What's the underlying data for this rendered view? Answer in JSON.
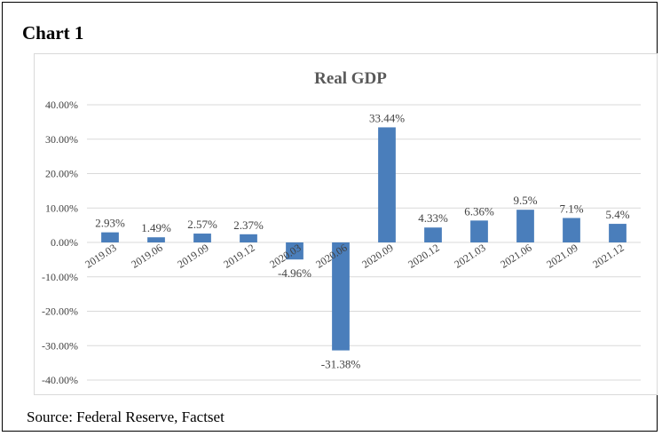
{
  "header": {
    "title": "Chart 1"
  },
  "footer": {
    "source": "Source: Federal Reserve, Factset"
  },
  "chart_data": {
    "type": "bar",
    "title": "Real GDP",
    "categories": [
      "2019.03",
      "2019.06",
      "2019.09",
      "2019.12",
      "2020.03",
      "2020.06",
      "2020.09",
      "2020.12",
      "2021.03",
      "2021.06",
      "2021.09",
      "2021.12"
    ],
    "values": [
      2.93,
      1.49,
      2.57,
      2.37,
      -4.96,
      -31.38,
      33.44,
      4.33,
      6.36,
      9.5,
      7.1,
      5.4
    ],
    "data_labels": [
      "2.93%",
      "1.49%",
      "2.57%",
      "2.37%",
      "-4.96%",
      "-31.38%",
      "33.44%",
      "4.33%",
      "6.36%",
      "9.5%",
      "7.1%",
      "5.4%"
    ],
    "y_ticks": [
      40,
      30,
      20,
      10,
      0,
      -10,
      -20,
      -30,
      -40
    ],
    "y_tick_labels": [
      "40.00%",
      "30.00%",
      "20.00%",
      "10.00%",
      "0.00%",
      "-10.00%",
      "-20.00%",
      "-30.00%",
      "-40.00%"
    ],
    "ylim": [
      -40,
      40
    ],
    "xlabel": "",
    "ylabel": "",
    "grid": true,
    "legend": "none",
    "colors": {
      "bar": "#4a7ebb",
      "grid": "#d9d9d9",
      "title": "#595959",
      "text": "#404040"
    }
  }
}
